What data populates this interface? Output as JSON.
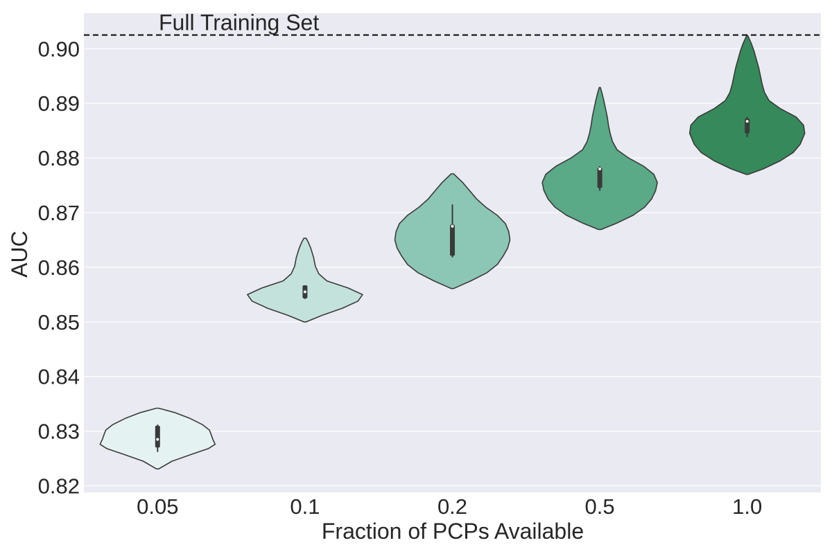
{
  "chart_data": {
    "type": "violin",
    "xlabel": "Fraction of PCPs Available",
    "ylabel": "AUC",
    "ylim": [
      0.8188,
      0.9065
    ],
    "yticks": [
      "0.82",
      "0.83",
      "0.84",
      "0.85",
      "0.86",
      "0.87",
      "0.88",
      "0.89",
      "0.90"
    ],
    "grid": true,
    "reference_line": {
      "label": "Full Training Set",
      "value": 0.9025,
      "style": "dashed"
    },
    "categories": [
      "0.05",
      "0.1",
      "0.2",
      "0.5",
      "1.0"
    ],
    "colors": [
      "#e4f3f2",
      "#c3e2dc",
      "#8cc6b4",
      "#5aa987",
      "#36895a"
    ],
    "violins": [
      {
        "category": "0.05",
        "min": 0.8231,
        "max": 0.8342,
        "q1": 0.827,
        "median": 0.8285,
        "q3": 0.831,
        "whisker_low": 0.8262,
        "whisker_high": 0.8312,
        "density": [
          [
            0.8231,
            0.02
          ],
          [
            0.8245,
            0.25
          ],
          [
            0.8258,
            0.6
          ],
          [
            0.8268,
            0.88
          ],
          [
            0.8276,
            1.0
          ],
          [
            0.8285,
            0.96
          ],
          [
            0.8294,
            0.93
          ],
          [
            0.8302,
            0.9
          ],
          [
            0.8312,
            0.78
          ],
          [
            0.8324,
            0.55
          ],
          [
            0.8334,
            0.3
          ],
          [
            0.8342,
            0.02
          ]
        ]
      },
      {
        "category": "0.1",
        "min": 0.85,
        "max": 0.8653,
        "q1": 0.8543,
        "median": 0.8555,
        "q3": 0.8567,
        "whisker_low": 0.8542,
        "whisker_high": 0.8567,
        "density": [
          [
            0.85,
            0.02
          ],
          [
            0.8512,
            0.3
          ],
          [
            0.8525,
            0.65
          ],
          [
            0.8538,
            0.92
          ],
          [
            0.855,
            1.0
          ],
          [
            0.8562,
            0.75
          ],
          [
            0.8575,
            0.38
          ],
          [
            0.8588,
            0.24
          ],
          [
            0.8602,
            0.18
          ],
          [
            0.8618,
            0.15
          ],
          [
            0.8635,
            0.1
          ],
          [
            0.8645,
            0.06
          ],
          [
            0.8653,
            0.02
          ]
        ]
      },
      {
        "category": "0.2",
        "min": 0.8561,
        "max": 0.8771,
        "q1": 0.8621,
        "median": 0.8675,
        "q3": 0.8678,
        "whisker_low": 0.8618,
        "whisker_high": 0.8715,
        "density": [
          [
            0.8561,
            0.02
          ],
          [
            0.8575,
            0.32
          ],
          [
            0.859,
            0.6
          ],
          [
            0.8605,
            0.78
          ],
          [
            0.862,
            0.88
          ],
          [
            0.8635,
            0.96
          ],
          [
            0.865,
            1.0
          ],
          [
            0.8665,
            0.98
          ],
          [
            0.868,
            0.92
          ],
          [
            0.8695,
            0.78
          ],
          [
            0.871,
            0.58
          ],
          [
            0.8725,
            0.42
          ],
          [
            0.874,
            0.3
          ],
          [
            0.8755,
            0.18
          ],
          [
            0.8771,
            0.02
          ]
        ]
      },
      {
        "category": "0.5",
        "min": 0.8669,
        "max": 0.8929,
        "q1": 0.8745,
        "median": 0.878,
        "q3": 0.8782,
        "whisker_low": 0.874,
        "whisker_high": 0.8785,
        "density": [
          [
            0.8669,
            0.02
          ],
          [
            0.868,
            0.28
          ],
          [
            0.8695,
            0.58
          ],
          [
            0.871,
            0.78
          ],
          [
            0.8725,
            0.9
          ],
          [
            0.874,
            0.97
          ],
          [
            0.8755,
            1.0
          ],
          [
            0.877,
            0.94
          ],
          [
            0.8785,
            0.76
          ],
          [
            0.88,
            0.5
          ],
          [
            0.8815,
            0.3
          ],
          [
            0.883,
            0.22
          ],
          [
            0.8845,
            0.18
          ],
          [
            0.886,
            0.15
          ],
          [
            0.8875,
            0.13
          ],
          [
            0.889,
            0.1
          ],
          [
            0.8905,
            0.07
          ],
          [
            0.8918,
            0.04
          ],
          [
            0.8929,
            0.01
          ]
        ]
      },
      {
        "category": "1.0",
        "min": 0.877,
        "max": 0.9024,
        "q1": 0.8845,
        "median": 0.8867,
        "q3": 0.8872,
        "whisker_low": 0.8838,
        "whisker_high": 0.8875,
        "density": [
          [
            0.877,
            0.02
          ],
          [
            0.878,
            0.28
          ],
          [
            0.8795,
            0.58
          ],
          [
            0.881,
            0.8
          ],
          [
            0.8825,
            0.92
          ],
          [
            0.8845,
            1.0
          ],
          [
            0.886,
            0.98
          ],
          [
            0.8875,
            0.85
          ],
          [
            0.889,
            0.58
          ],
          [
            0.8905,
            0.38
          ],
          [
            0.892,
            0.3
          ],
          [
            0.8935,
            0.26
          ],
          [
            0.895,
            0.23
          ],
          [
            0.8965,
            0.2
          ],
          [
            0.898,
            0.16
          ],
          [
            0.8995,
            0.12
          ],
          [
            0.901,
            0.07
          ],
          [
            0.9024,
            0.01
          ]
        ]
      }
    ]
  }
}
